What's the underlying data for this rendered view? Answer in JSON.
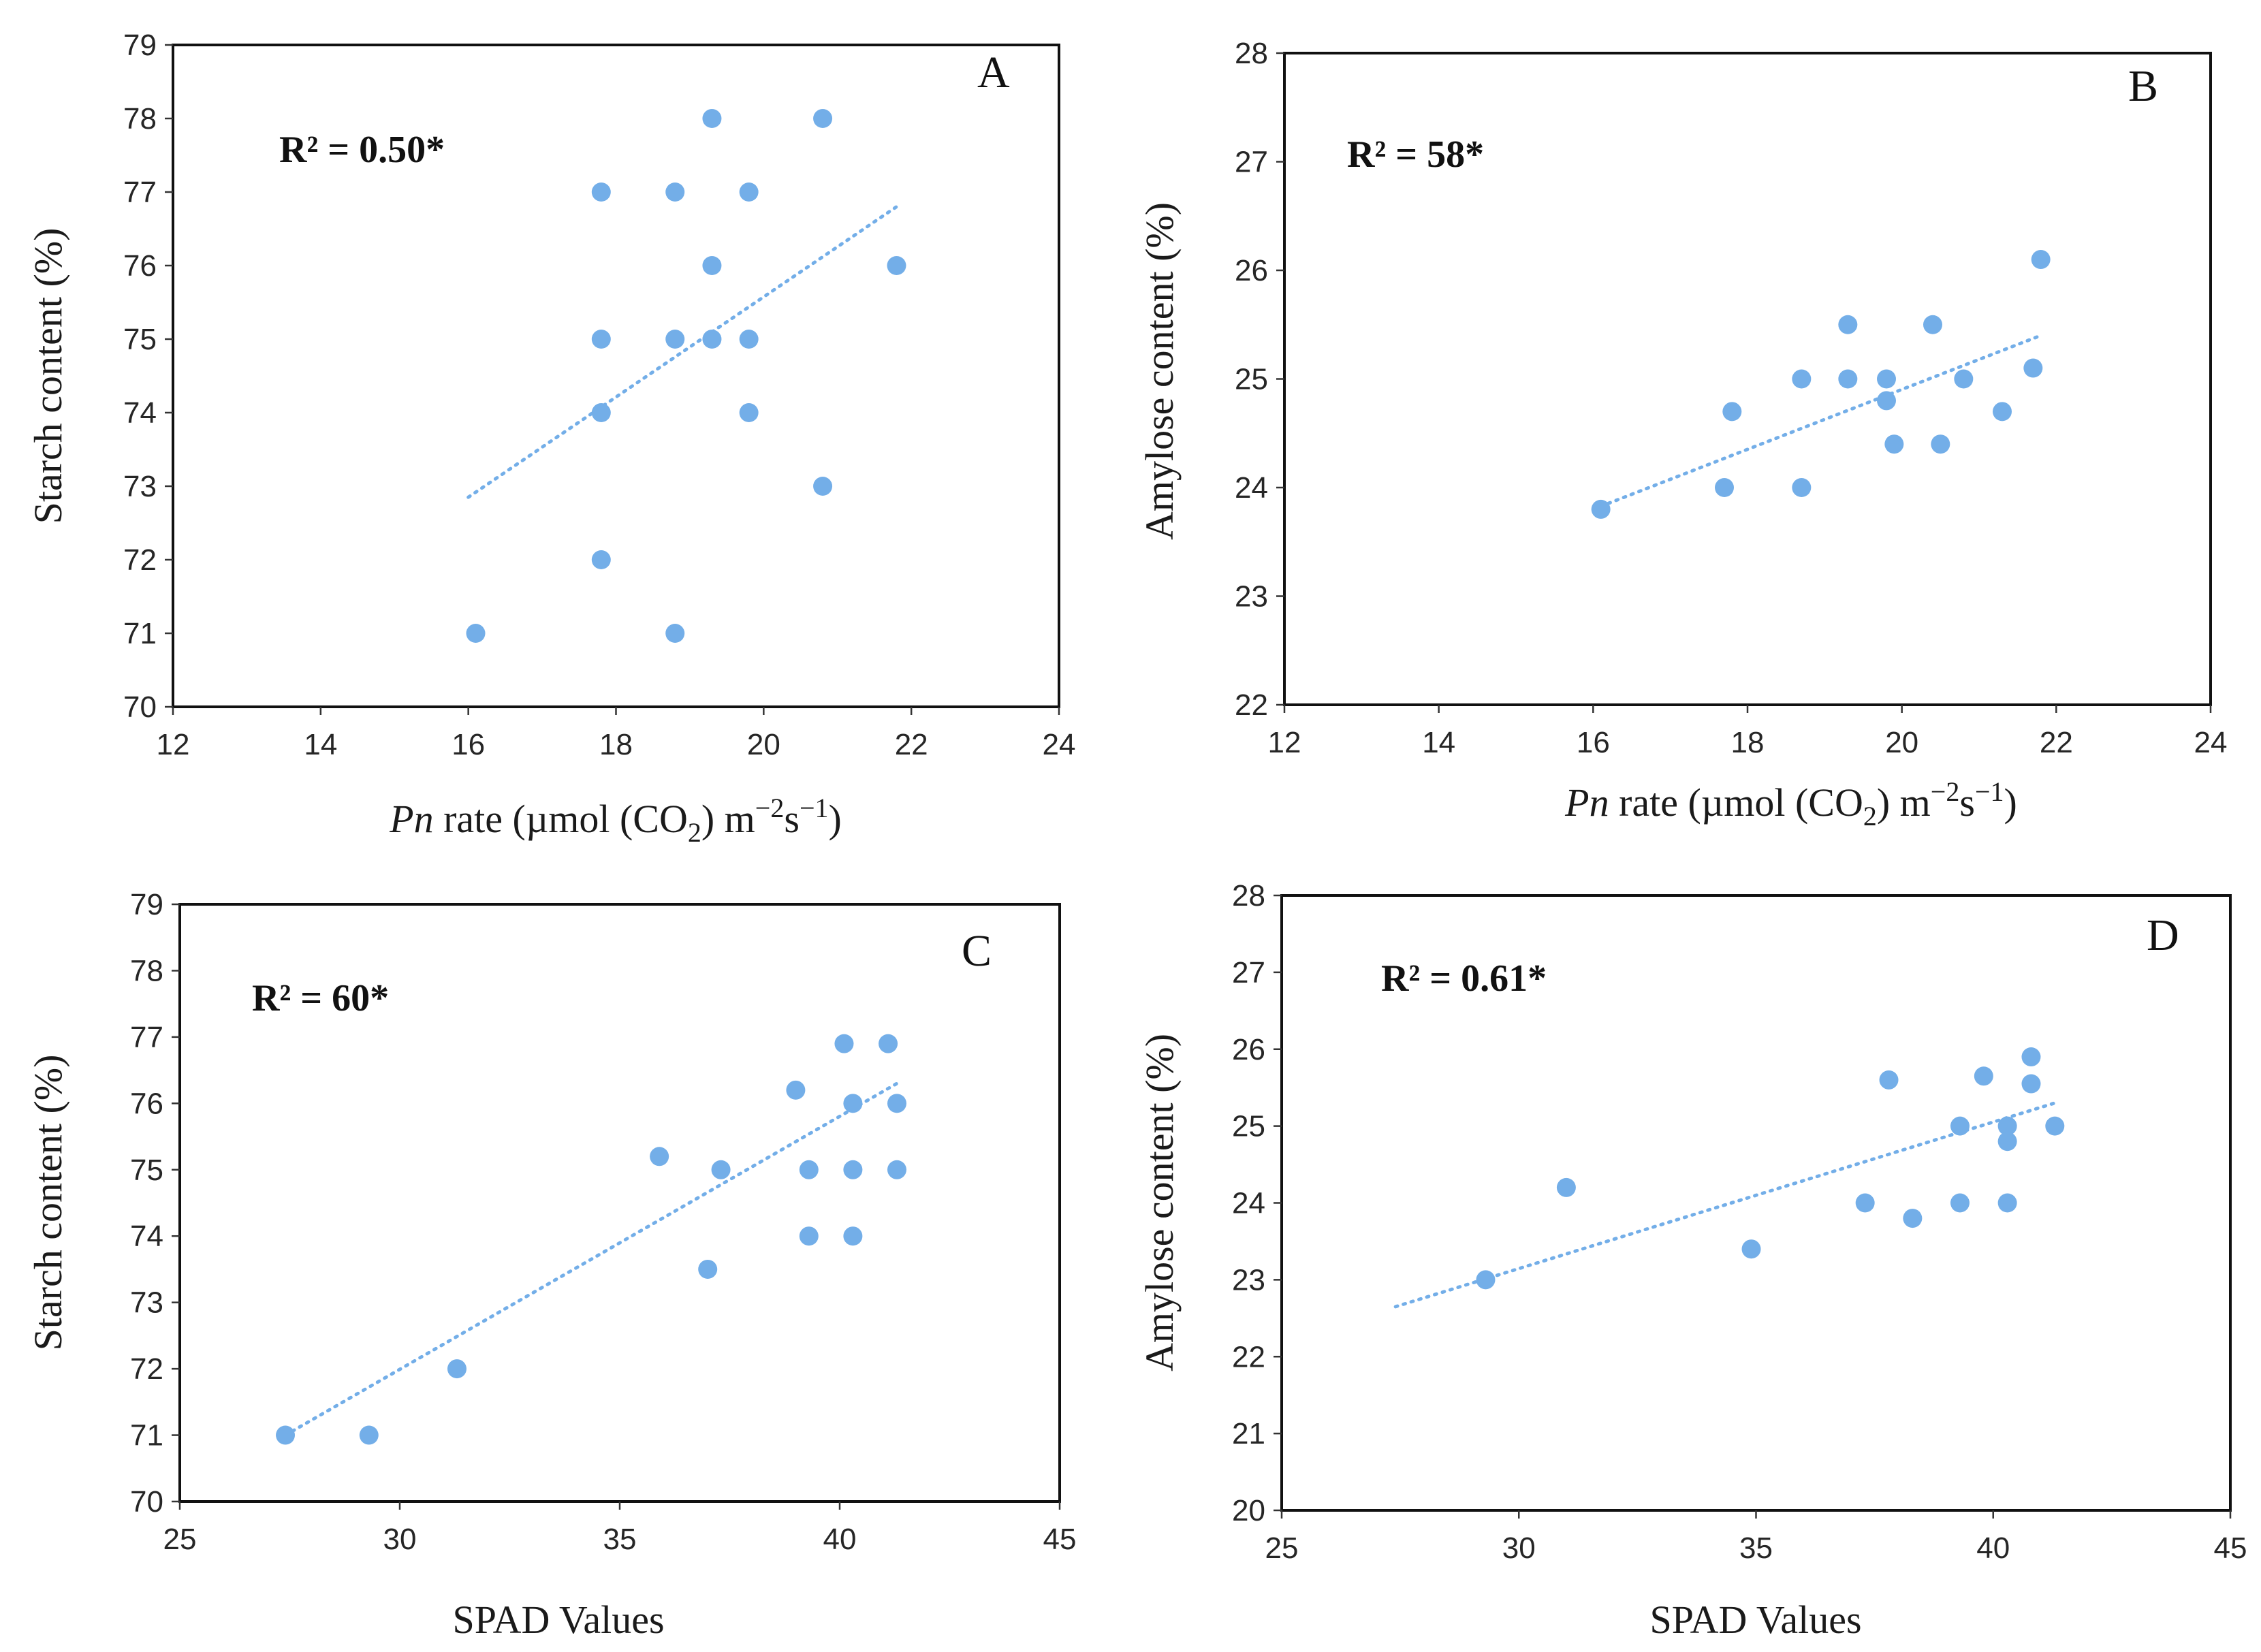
{
  "colors": {
    "point": "#73aee8",
    "trend": "#73aee8",
    "frame": "#111111"
  },
  "chart_data": [
    {
      "type": "scatter",
      "panel_label": "A",
      "annotation": "R² = 0.50*",
      "xlabel": {
        "italic": "Pn",
        "text": " rate (µmol (CO",
        "sub": "2",
        "text2": ") m",
        "sup1": "−2",
        "text3": "s",
        "sup2": "−1",
        "text4": ")"
      },
      "ylabel": "Starch content (%)",
      "xlim": [
        12,
        24
      ],
      "ylim": [
        70,
        79
      ],
      "xticks": [
        "12",
        "14",
        "16",
        "18",
        "20",
        "22",
        "24"
      ],
      "yticks": [
        "70",
        "71",
        "72",
        "73",
        "74",
        "75",
        "76",
        "77",
        "78",
        "79"
      ],
      "grid": false,
      "points": [
        [
          16.1,
          71
        ],
        [
          17.8,
          77
        ],
        [
          17.8,
          75
        ],
        [
          17.8,
          74
        ],
        [
          17.8,
          72
        ],
        [
          18.8,
          77
        ],
        [
          18.8,
          75
        ],
        [
          18.8,
          71
        ],
        [
          19.3,
          78
        ],
        [
          19.3,
          76
        ],
        [
          19.3,
          75
        ],
        [
          19.8,
          77
        ],
        [
          19.8,
          75
        ],
        [
          19.8,
          74
        ],
        [
          20.8,
          78
        ],
        [
          20.8,
          73
        ],
        [
          21.8,
          76
        ]
      ],
      "trendline": [
        [
          16.0,
          72.85
        ],
        [
          21.8,
          76.8
        ]
      ]
    },
    {
      "type": "scatter",
      "panel_label": "B",
      "annotation": "R² = 58*",
      "xlabel": {
        "italic": "Pn",
        "text": " rate (µmol (CO",
        "sub": "2",
        "text2": ") m",
        "sup1": "−2",
        "text3": "s",
        "sup2": "−1",
        "text4": ")"
      },
      "ylabel": "Amylose content (%)",
      "xlim": [
        12,
        24
      ],
      "ylim": [
        22,
        28
      ],
      "xticks": [
        "12",
        "14",
        "16",
        "18",
        "20",
        "22",
        "24"
      ],
      "yticks": [
        "22",
        "23",
        "24",
        "25",
        "26",
        "27",
        "28"
      ],
      "grid": false,
      "points": [
        [
          16.1,
          23.8
        ],
        [
          17.7,
          24.0
        ],
        [
          17.8,
          24.7
        ],
        [
          18.7,
          25.0
        ],
        [
          18.7,
          24.0
        ],
        [
          19.3,
          25.5
        ],
        [
          19.3,
          25.0
        ],
        [
          19.8,
          25.0
        ],
        [
          19.8,
          24.8
        ],
        [
          19.9,
          24.4
        ],
        [
          20.4,
          25.5
        ],
        [
          20.5,
          24.4
        ],
        [
          20.8,
          25.0
        ],
        [
          21.3,
          24.7
        ],
        [
          21.7,
          25.1
        ],
        [
          21.8,
          26.1
        ]
      ],
      "trendline": [
        [
          16.0,
          23.8
        ],
        [
          21.8,
          25.4
        ]
      ]
    },
    {
      "type": "scatter",
      "panel_label": "C",
      "annotation": "R² = 60*",
      "xlabel": {
        "text": "SPAD Values"
      },
      "ylabel": "Starch content (%)",
      "xlim": [
        25,
        45
      ],
      "ylim": [
        70,
        79
      ],
      "xticks": [
        "25",
        "30",
        "35",
        "40",
        "45"
      ],
      "yticks": [
        "70",
        "71",
        "72",
        "73",
        "74",
        "75",
        "76",
        "77",
        "78",
        "79"
      ],
      "grid": false,
      "points": [
        [
          27.4,
          71.0
        ],
        [
          29.3,
          71.0
        ],
        [
          31.3,
          72.0
        ],
        [
          35.9,
          75.2
        ],
        [
          37.0,
          73.5
        ],
        [
          37.3,
          75.0
        ],
        [
          39.0,
          76.2
        ],
        [
          39.3,
          75.0
        ],
        [
          39.3,
          74.0
        ],
        [
          40.1,
          76.9
        ],
        [
          40.3,
          76.0
        ],
        [
          40.3,
          75.0
        ],
        [
          40.3,
          74.0
        ],
        [
          41.1,
          76.9
        ],
        [
          41.3,
          76.0
        ],
        [
          41.3,
          75.0
        ]
      ],
      "trendline": [
        [
          27.4,
          71.0
        ],
        [
          41.3,
          76.3
        ]
      ]
    },
    {
      "type": "scatter",
      "panel_label": "D",
      "annotation": "R² = 0.61*",
      "xlabel": {
        "text": "SPAD Values"
      },
      "ylabel": "Amylose content (%)",
      "xlim": [
        25,
        45
      ],
      "ylim": [
        20,
        28
      ],
      "xticks": [
        "25",
        "30",
        "35",
        "40",
        "45"
      ],
      "yticks": [
        "20",
        "21",
        "22",
        "23",
        "24",
        "25",
        "26",
        "27",
        "28"
      ],
      "grid": false,
      "points": [
        [
          29.3,
          23.0
        ],
        [
          31.0,
          24.2
        ],
        [
          34.9,
          23.4
        ],
        [
          37.3,
          24.0
        ],
        [
          37.8,
          25.6
        ],
        [
          38.3,
          23.8
        ],
        [
          39.3,
          25.0
        ],
        [
          39.3,
          24.0
        ],
        [
          39.8,
          25.65
        ],
        [
          40.3,
          25.0
        ],
        [
          40.3,
          24.8
        ],
        [
          40.3,
          24.0
        ],
        [
          40.8,
          25.9
        ],
        [
          40.8,
          25.55
        ],
        [
          41.3,
          25.0
        ]
      ],
      "trendline": [
        [
          27.4,
          22.65
        ],
        [
          41.3,
          25.3
        ]
      ]
    }
  ]
}
